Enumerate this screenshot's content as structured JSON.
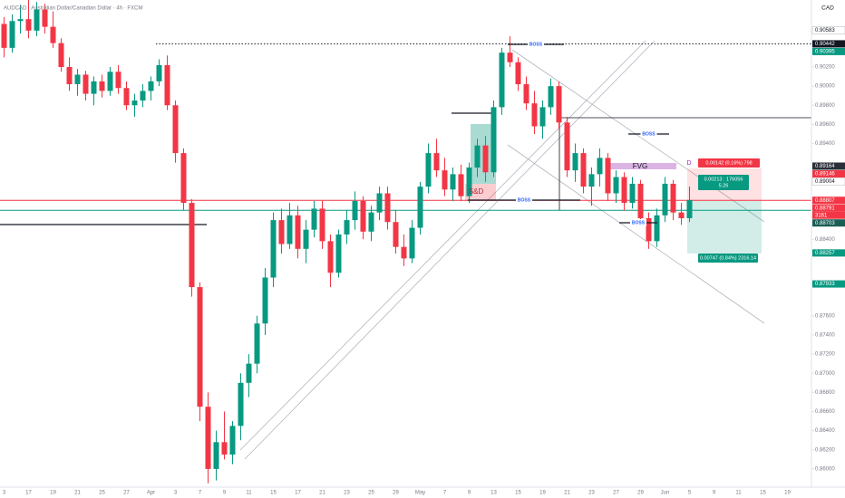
{
  "chart_data": {
    "type": "candlestick",
    "title": "AUDCAD · Australian Dollar/Canadian Dollar · 4h · FXCM",
    "currency": "CAD",
    "up_color": "#089981",
    "down_color": "#f23645",
    "ylim": [
      0.8581,
      0.909
    ],
    "yticks": [
      {
        "value": 0.86,
        "label": "0.86000"
      },
      {
        "value": 0.862,
        "label": "0.86200"
      },
      {
        "value": 0.864,
        "label": "0.86400"
      },
      {
        "value": 0.866,
        "label": "0.86600"
      },
      {
        "value": 0.868,
        "label": "0.86800"
      },
      {
        "value": 0.87,
        "label": "0.87000"
      },
      {
        "value": 0.872,
        "label": "0.87200"
      },
      {
        "value": 0.874,
        "label": "0.87400"
      },
      {
        "value": 0.876,
        "label": "0.87600"
      },
      {
        "value": 0.884,
        "label": "0.88400"
      },
      {
        "value": 0.894,
        "label": "0.89400"
      },
      {
        "value": 0.896,
        "label": "0.89600"
      },
      {
        "value": 0.898,
        "label": "0.89800"
      },
      {
        "value": 0.9,
        "label": "0.90000"
      },
      {
        "value": 0.902,
        "label": "0.90200"
      }
    ],
    "grid": false,
    "categories": [
      "3",
      null,
      null,
      "17",
      null,
      null,
      "19",
      null,
      null,
      "21",
      null,
      null,
      "25",
      null,
      null,
      "27",
      null,
      null,
      "Apr",
      null,
      null,
      "3",
      null,
      null,
      "7",
      null,
      null,
      "9",
      null,
      null,
      "11",
      null,
      null,
      "15",
      null,
      null,
      "17",
      null,
      null,
      "21",
      null,
      null,
      "23",
      null,
      null,
      "25",
      null,
      null,
      "29",
      null,
      null,
      "May",
      null,
      null,
      "7",
      null,
      null,
      "9",
      null,
      null,
      "13",
      null,
      null,
      "15",
      null,
      null,
      "19",
      null,
      null,
      "21",
      null,
      null,
      "23",
      null,
      null,
      "27",
      null,
      null,
      "29",
      null,
      null,
      "Jun",
      null,
      null,
      "5",
      null,
      null,
      "9",
      null,
      null,
      "11",
      null,
      null,
      "15",
      null,
      null,
      "19",
      null,
      null
    ],
    "ohlc": [
      [
        0.9065,
        0.9072,
        0.903,
        0.904
      ],
      [
        0.904,
        0.9075,
        0.9035,
        0.9068
      ],
      [
        0.9068,
        0.9085,
        0.9055,
        0.907
      ],
      [
        0.907,
        0.909,
        0.905,
        0.9058
      ],
      [
        0.9058,
        0.9088,
        0.9052,
        0.908
      ],
      [
        0.908,
        0.9086,
        0.9055,
        0.9062
      ],
      [
        0.9062,
        0.9078,
        0.904,
        0.9045
      ],
      [
        0.9045,
        0.905,
        0.9015,
        0.902
      ],
      [
        0.902,
        0.903,
        0.8995,
        0.9002
      ],
      [
        0.9002,
        0.9018,
        0.899,
        0.9012
      ],
      [
        0.9012,
        0.9016,
        0.8985,
        0.8992
      ],
      [
        0.8992,
        0.901,
        0.898,
        0.9005
      ],
      [
        0.9005,
        0.9012,
        0.8988,
        0.8995
      ],
      [
        0.8995,
        0.902,
        0.899,
        0.9015
      ],
      [
        0.9015,
        0.9022,
        0.8992,
        0.8998
      ],
      [
        0.8998,
        0.9005,
        0.8975,
        0.898
      ],
      [
        0.898,
        0.8992,
        0.8968,
        0.8985
      ],
      [
        0.8985,
        0.9002,
        0.8978,
        0.8995
      ],
      [
        0.8995,
        0.901,
        0.8985,
        0.9005
      ],
      [
        0.9005,
        0.9028,
        0.9,
        0.9022
      ],
      [
        0.9022,
        0.9032,
        0.8975,
        0.898
      ],
      [
        0.898,
        0.8985,
        0.892,
        0.893
      ],
      [
        0.893,
        0.8935,
        0.887,
        0.8878
      ],
      [
        0.8878,
        0.8882,
        0.878,
        0.879
      ],
      [
        0.879,
        0.8795,
        0.865,
        0.8665
      ],
      [
        0.8665,
        0.868,
        0.8585,
        0.86
      ],
      [
        0.86,
        0.864,
        0.8588,
        0.8628
      ],
      [
        0.8628,
        0.866,
        0.861,
        0.8615
      ],
      [
        0.8615,
        0.865,
        0.8605,
        0.8645
      ],
      [
        0.8645,
        0.87,
        0.863,
        0.869
      ],
      [
        0.869,
        0.872,
        0.8675,
        0.871
      ],
      [
        0.871,
        0.876,
        0.87,
        0.8752
      ],
      [
        0.8752,
        0.881,
        0.874,
        0.88
      ],
      [
        0.88,
        0.8868,
        0.879,
        0.886
      ],
      [
        0.886,
        0.8872,
        0.8825,
        0.8835
      ],
      [
        0.8835,
        0.8878,
        0.883,
        0.8865
      ],
      [
        0.8865,
        0.8875,
        0.882,
        0.883
      ],
      [
        0.883,
        0.886,
        0.8815,
        0.885
      ],
      [
        0.885,
        0.888,
        0.8842,
        0.8872
      ],
      [
        0.8872,
        0.888,
        0.883,
        0.8838
      ],
      [
        0.8838,
        0.8845,
        0.879,
        0.8805
      ],
      [
        0.8805,
        0.885,
        0.88,
        0.8845
      ],
      [
        0.8845,
        0.887,
        0.8835,
        0.886
      ],
      [
        0.886,
        0.889,
        0.885,
        0.888
      ],
      [
        0.888,
        0.8885,
        0.884,
        0.8848
      ],
      [
        0.8848,
        0.8875,
        0.8838,
        0.8868
      ],
      [
        0.8868,
        0.8895,
        0.886,
        0.8888
      ],
      [
        0.8888,
        0.8895,
        0.885,
        0.8858
      ],
      [
        0.8858,
        0.887,
        0.8825,
        0.8832
      ],
      [
        0.8832,
        0.8845,
        0.8812,
        0.882
      ],
      [
        0.882,
        0.886,
        0.8815,
        0.8852
      ],
      [
        0.8852,
        0.89,
        0.8845,
        0.8895
      ],
      [
        0.8895,
        0.894,
        0.8888,
        0.893
      ],
      [
        0.893,
        0.8945,
        0.8905,
        0.8912
      ],
      [
        0.8912,
        0.8925,
        0.8885,
        0.8892
      ],
      [
        0.8892,
        0.8915,
        0.888,
        0.8908
      ],
      [
        0.8908,
        0.8918,
        0.888,
        0.8885
      ],
      [
        0.8885,
        0.892,
        0.8878,
        0.8915
      ],
      [
        0.8915,
        0.8945,
        0.8905,
        0.8938
      ],
      [
        0.8938,
        0.8948,
        0.89,
        0.891
      ],
      [
        0.891,
        0.8985,
        0.8905,
        0.8978
      ],
      [
        0.8978,
        0.904,
        0.897,
        0.9035
      ],
      [
        0.9035,
        0.9052,
        0.902,
        0.9025
      ],
      [
        0.9025,
        0.903,
        0.8995,
        0.9002
      ],
      [
        0.9002,
        0.901,
        0.8975,
        0.8982
      ],
      [
        0.8982,
        0.8995,
        0.895,
        0.8958
      ],
      [
        0.8958,
        0.8985,
        0.8945,
        0.8978
      ],
      [
        0.8978,
        0.9008,
        0.897,
        0.9
      ],
      [
        0.9,
        0.9005,
        0.8955,
        0.8962
      ],
      [
        0.8962,
        0.8968,
        0.8905,
        0.8912
      ],
      [
        0.8912,
        0.894,
        0.89,
        0.893
      ],
      [
        0.893,
        0.8935,
        0.8888,
        0.8895
      ],
      [
        0.8895,
        0.8915,
        0.8875,
        0.8908
      ],
      [
        0.8908,
        0.8935,
        0.8895,
        0.8925
      ],
      [
        0.8925,
        0.893,
        0.888,
        0.8888
      ],
      [
        0.8888,
        0.8912,
        0.8878,
        0.8905
      ],
      [
        0.8905,
        0.891,
        0.887,
        0.8878
      ],
      [
        0.8878,
        0.8905,
        0.8872,
        0.8898
      ],
      [
        0.8898,
        0.8902,
        0.8855,
        0.8862
      ],
      [
        0.8862,
        0.8868,
        0.883,
        0.8838
      ],
      [
        0.8838,
        0.8872,
        0.8832,
        0.8865
      ],
      [
        0.8865,
        0.8905,
        0.8858,
        0.8898
      ],
      [
        0.8898,
        0.8902,
        0.886,
        0.8868
      ],
      [
        0.8868,
        0.8878,
        0.8855,
        0.8862
      ],
      [
        0.8862,
        0.8895,
        0.8858,
        0.8881
      ],
      null,
      null,
      null,
      null,
      null,
      null,
      null,
      null,
      null,
      null,
      null,
      null,
      null,
      null
    ],
    "price_labels": [
      {
        "value": 0.90583,
        "color": "#ffffff"
      },
      {
        "value": 0.90442,
        "color": "#131722"
      },
      {
        "value": 0.90395,
        "color": "#089981"
      },
      {
        "value": 0.89164,
        "color": "#2a2e39"
      },
      {
        "value": 0.89146,
        "color": "#f23645"
      },
      {
        "value": 0.89004,
        "color": "#ffffff"
      },
      {
        "value": 0.88807,
        "color": "#f23645"
      },
      {
        "value": 0.88791,
        "color": "#f23645"
      },
      {
        "value": 0.88703,
        "color": "#1b5e56"
      },
      {
        "value": 0.88257,
        "color": "#089981"
      },
      {
        "value": 0.87933,
        "color": "#089981"
      }
    ],
    "countdown": "3161",
    "annotations": [
      "BOSS",
      "BOSS",
      "BOSS",
      "BOSS",
      "S&D",
      "FVG",
      "D"
    ],
    "position_labels": [
      "0.00142 (0.16%) 798",
      "0.00213 : 176056",
      "5.26",
      "0.00747 (0.84%) 2316.14"
    ]
  }
}
